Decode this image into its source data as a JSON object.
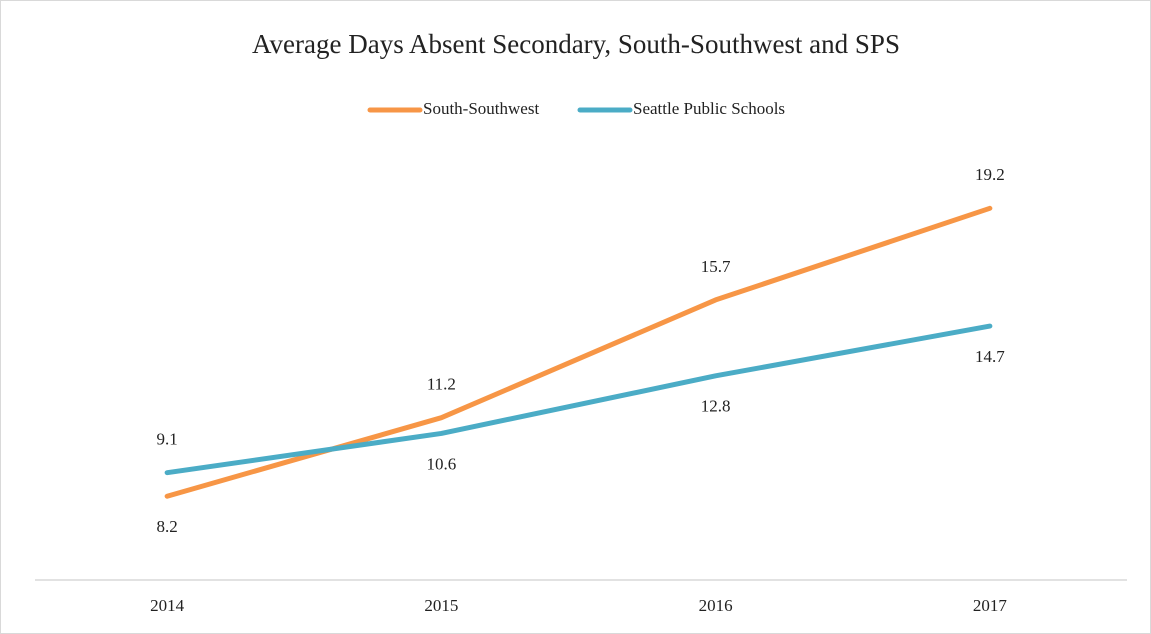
{
  "chart_data": {
    "type": "line",
    "title": "Average Days Absent Secondary, South-Southwest and SPS",
    "categories": [
      "2014",
      "2015",
      "2016",
      "2017"
    ],
    "series": [
      {
        "name": "South-Southwest",
        "color": "#f79646",
        "values": [
          8.2,
          11.2,
          15.7,
          19.2
        ]
      },
      {
        "name": "Seattle Public Schools",
        "color": "#4bacc6",
        "values": [
          9.1,
          10.6,
          12.8,
          14.7
        ]
      }
    ],
    "ylim": [
      5,
      25
    ],
    "grid": false,
    "legend": "top"
  }
}
